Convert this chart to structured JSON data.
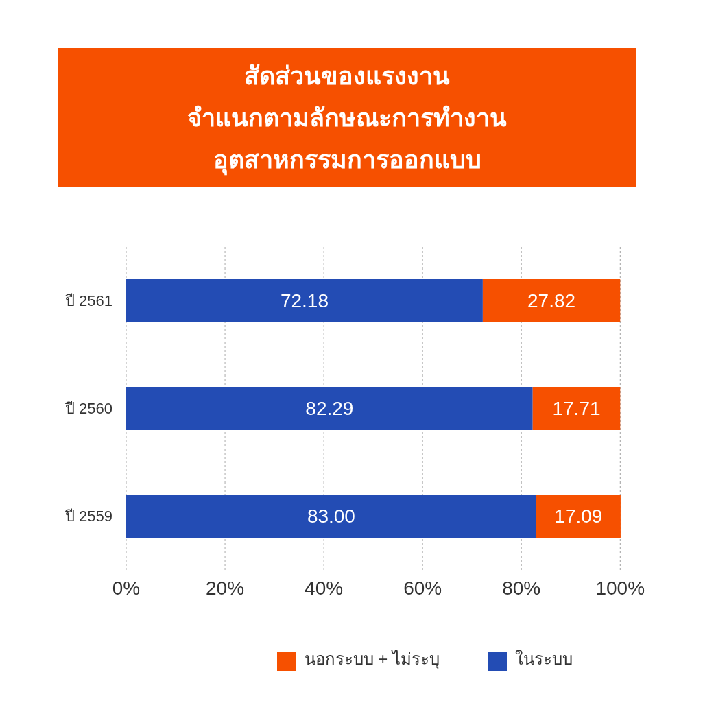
{
  "chart_data": {
    "type": "bar",
    "orientation": "horizontal",
    "stacked": true,
    "title": "สัดส่วนของแรงงาน\nจำแนกตามลักษณะการทำงาน\nอุตสาหกรรมการออกแบบ",
    "categories": [
      "ปี 2561",
      "ปี 2560",
      "ปี 2559"
    ],
    "series": [
      {
        "name": "ในระบบ",
        "color": "#234cb4",
        "values": [
          72.18,
          82.29,
          83.0
        ],
        "value_labels": [
          "72.18",
          "82.29",
          "83.00"
        ]
      },
      {
        "name": "นอกระบบ + ไม่ระบุ",
        "color": "#f65000",
        "values": [
          27.82,
          17.71,
          17.09
        ],
        "value_labels": [
          "27.82",
          "17.71",
          "17.09"
        ]
      }
    ],
    "xlim": [
      0,
      100.1
    ],
    "xticks": [
      {
        "value": 0,
        "label": "0%"
      },
      {
        "value": 20,
        "label": "20%"
      },
      {
        "value": 40,
        "label": "40%"
      },
      {
        "value": 60,
        "label": "60%"
      },
      {
        "value": 80,
        "label": "80%"
      },
      {
        "value": 100,
        "label": "100%"
      }
    ],
    "grid": "x",
    "legend": "bottom right"
  }
}
